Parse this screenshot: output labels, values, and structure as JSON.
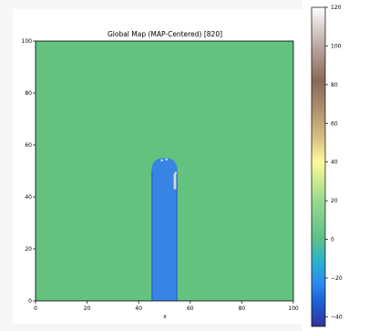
{
  "chart_data": {
    "type": "heatmap",
    "title": "Global Map (MAP-Centered) [820]",
    "xlabel": "x",
    "ylabel": "",
    "xlim": [
      0,
      100
    ],
    "ylim": [
      0,
      100
    ],
    "x_ticks": [
      "0",
      "20",
      "40",
      "60",
      "80",
      "100"
    ],
    "y_ticks": [
      "0",
      "20",
      "40",
      "60",
      "80",
      "100"
    ],
    "background_value": 0,
    "background_color": "#62c27e",
    "features": [
      {
        "kind": "channel",
        "x_range": [
          45,
          55
        ],
        "y_range": [
          0,
          50
        ],
        "cap_top": 55,
        "value": -25,
        "color": "#3784e5",
        "edge_color": "#2a62c6"
      },
      {
        "kind": "high-value-spot",
        "x_range": [
          54,
          55
        ],
        "y_range": [
          43,
          49
        ],
        "value": 110,
        "color": "#d9d9d9"
      }
    ],
    "colorbar": {
      "min": -45,
      "max": 120,
      "ticks": [
        "120",
        "100",
        "80",
        "60",
        "40",
        "20",
        "0",
        "−20",
        "−40"
      ],
      "tick_values": [
        120,
        100,
        80,
        60,
        40,
        20,
        0,
        -20,
        -40
      ],
      "stops": [
        {
          "value": -45,
          "color": "#333399"
        },
        {
          "value": -32,
          "color": "#1e62d8"
        },
        {
          "value": -22,
          "color": "#2f8cee"
        },
        {
          "value": -12,
          "color": "#27b1d0"
        },
        {
          "value": 0,
          "color": "#5cc08a"
        },
        {
          "value": 20,
          "color": "#98d98f"
        },
        {
          "value": 40,
          "color": "#fdfa9a"
        },
        {
          "value": 52,
          "color": "#d9c285"
        },
        {
          "value": 68,
          "color": "#ab8d6d"
        },
        {
          "value": 82,
          "color": "#8a6a58"
        },
        {
          "value": 100,
          "color": "#bba8a2"
        },
        {
          "value": 120,
          "color": "#fefefe"
        }
      ]
    }
  }
}
